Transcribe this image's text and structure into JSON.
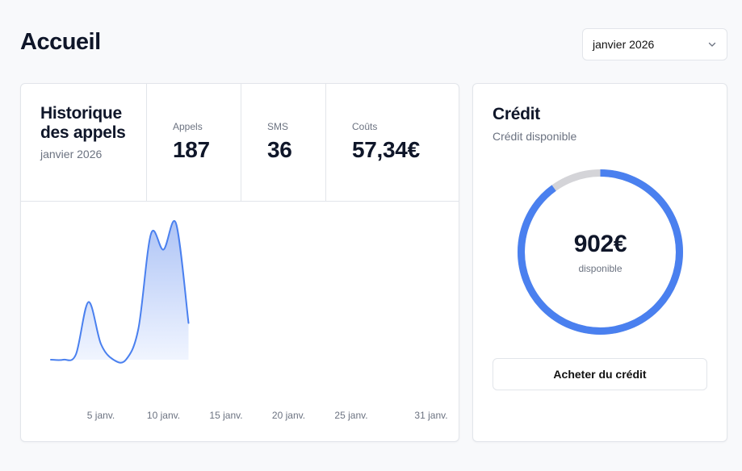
{
  "page": {
    "title": "Accueil"
  },
  "period_select": {
    "value": "janvier 2026",
    "icon": "chevron-down-icon"
  },
  "history": {
    "title": "Historique des appels",
    "subtitle": "janvier 2026",
    "stats": [
      {
        "label": "Appels",
        "value": "187"
      },
      {
        "label": "SMS",
        "value": "36"
      },
      {
        "label": "Coûts",
        "value": "57,34€"
      }
    ]
  },
  "credit": {
    "title": "Crédit",
    "subtitle": "Crédit disponible",
    "amount": "902€",
    "amount_label": "disponible",
    "available_fraction": 0.9,
    "button_label": "Acheter du crédit"
  },
  "colors": {
    "accent": "#4a80ef",
    "track": "#d4d4d8",
    "area_top": "#aec4f6",
    "area_bottom": "#f2f6ff"
  },
  "chart_data": {
    "type": "area",
    "x_ticks": [
      "5 janv.",
      "10 janv.",
      "15 janv.",
      "20 janv.",
      "25 janv.",
      "31 janv."
    ],
    "x": [
      1,
      2,
      3,
      4,
      5,
      6,
      7,
      8,
      9,
      10,
      11,
      12,
      13,
      14,
      15,
      16,
      17,
      18,
      19,
      20,
      21,
      22,
      23,
      24,
      25,
      26,
      27,
      28,
      29,
      30,
      31
    ],
    "values": [
      0,
      0,
      1,
      11,
      3,
      0,
      0,
      6,
      24,
      21,
      26,
      7,
      null,
      null,
      null,
      null,
      null,
      null,
      null,
      null,
      null,
      null,
      null,
      null,
      null,
      null,
      null,
      null,
      null,
      null,
      null
    ],
    "grid": false,
    "legend": "none"
  }
}
